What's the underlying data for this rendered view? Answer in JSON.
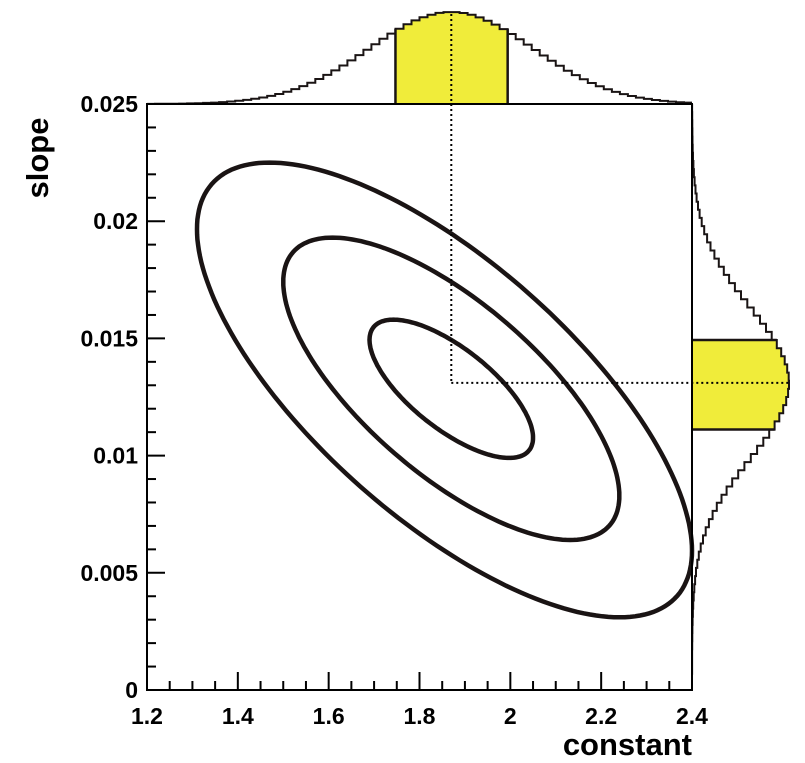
{
  "chart_data": {
    "type": "contour",
    "title": "",
    "xlabel": "constant",
    "ylabel": "slope",
    "xlim": [
      1.2,
      2.4
    ],
    "ylim": [
      0,
      0.025
    ],
    "x_ticks": [
      1.2,
      1.4,
      1.6,
      1.8,
      2.0,
      2.2,
      2.4
    ],
    "x_tick_labels": [
      "1.2",
      "1.4",
      "1.6",
      "1.8",
      "2",
      "2.2",
      "2.4"
    ],
    "y_ticks": [
      0,
      0.005,
      0.01,
      0.015,
      0.02,
      0.025
    ],
    "y_tick_labels": [
      "0",
      "0.005",
      "0.01",
      "0.015",
      "0.02",
      "0.025"
    ],
    "best_fit": {
      "constant": 1.87,
      "slope": 0.0131
    },
    "contours": [
      {
        "sigma": 1,
        "x_range": [
          1.69,
          2.05
        ],
        "y_range": [
          0.0099,
          0.0158
        ]
      },
      {
        "sigma": 2,
        "x_range": [
          1.5,
          2.24
        ],
        "y_range": [
          0.0064,
          0.0193
        ]
      },
      {
        "sigma": 3,
        "x_range": [
          1.31,
          2.4
        ],
        "y_range": [
          0.0031,
          0.0225
        ]
      }
    ],
    "marginal_constant": {
      "mean": 1.87,
      "sigma": 0.18,
      "shaded_range": [
        1.75,
        1.99
      ]
    },
    "marginal_slope": {
      "mean": 0.0131,
      "sigma": 0.0032,
      "shaded_range": [
        0.0111,
        0.0151
      ]
    },
    "grid": false,
    "colors": {
      "line": "#1a1414",
      "fill": "#f0ec3a",
      "background": "#ffffff"
    }
  }
}
